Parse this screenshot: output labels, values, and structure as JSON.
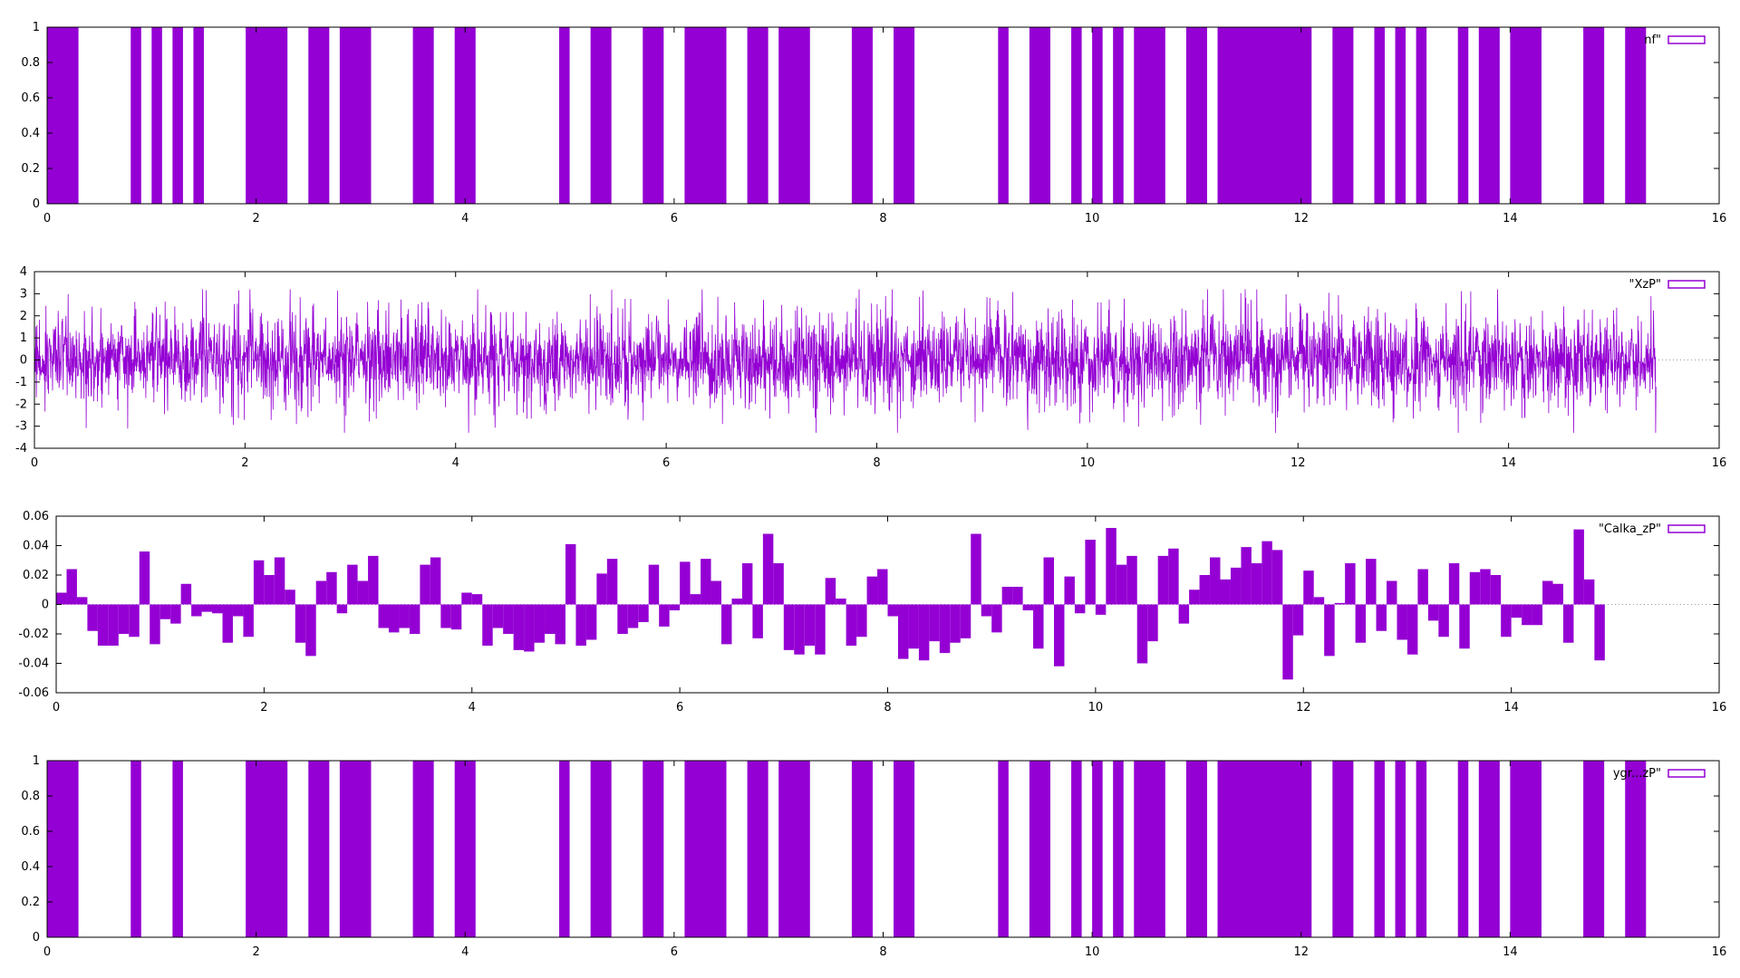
{
  "colors": {
    "series": "#9400d3",
    "axis": "#000000",
    "zero_line": "#999999",
    "background": "#ffffff"
  },
  "chart_data": [
    {
      "type": "bar",
      "legend": "nf\"",
      "legend_position": "top-right",
      "grid": false,
      "xlim": [
        0,
        16
      ],
      "ylim": [
        0,
        1
      ],
      "xticks": [
        0,
        2,
        4,
        6,
        8,
        10,
        12,
        14,
        16
      ],
      "yticks": [
        0,
        0.2,
        0.4,
        0.6,
        0.8,
        1
      ],
      "ytick_labels": [
        "0",
        "0.2",
        "0.4",
        "0.6",
        "0.8",
        "1"
      ],
      "intervals_value_1": [
        [
          0,
          0.3
        ],
        [
          0.8,
          0.9
        ],
        [
          1,
          1.1
        ],
        [
          1.2,
          1.3
        ],
        [
          1.4,
          1.5
        ],
        [
          1.9,
          2.3
        ],
        [
          2.5,
          2.7
        ],
        [
          2.8,
          3.1
        ],
        [
          3.5,
          3.7
        ],
        [
          3.9,
          4.1
        ],
        [
          4.9,
          5.0
        ],
        [
          5.2,
          5.4
        ],
        [
          5.7,
          5.9
        ],
        [
          6.1,
          6.5
        ],
        [
          6.7,
          6.9
        ],
        [
          7.0,
          7.3
        ],
        [
          7.7,
          7.9
        ],
        [
          8.1,
          8.3
        ],
        [
          9.1,
          9.2
        ],
        [
          9.4,
          9.6
        ],
        [
          9.8,
          9.9
        ],
        [
          10.0,
          10.1
        ],
        [
          10.2,
          10.3
        ],
        [
          10.4,
          10.7
        ],
        [
          10.9,
          11.1
        ],
        [
          11.2,
          12.1
        ],
        [
          12.3,
          12.5
        ],
        [
          12.7,
          12.8
        ],
        [
          12.9,
          13.0
        ],
        [
          13.1,
          13.2
        ],
        [
          13.5,
          13.6
        ],
        [
          13.7,
          13.9
        ],
        [
          14.0,
          14.3
        ],
        [
          14.7,
          14.9
        ],
        [
          15.1,
          15.3
        ]
      ]
    },
    {
      "type": "line",
      "legend": "\"XzP\"",
      "legend_position": "top-right",
      "grid": false,
      "xlim": [
        0,
        16
      ],
      "ylim": [
        -4,
        4
      ],
      "xticks": [
        0,
        2,
        4,
        6,
        8,
        10,
        12,
        14,
        16
      ],
      "yticks": [
        -4,
        -3,
        -2,
        -1,
        0,
        1,
        2,
        3,
        4
      ],
      "ytick_labels": [
        "-4",
        "-3",
        "-2",
        "-1",
        "0",
        "1",
        "2",
        "3",
        "4"
      ],
      "x_start": 0,
      "x_end": 15.4,
      "amplitude_range": [
        -3.3,
        3.2
      ],
      "note_series": "dense oscillating signal around 0"
    },
    {
      "type": "bar",
      "legend": "\"Calka_zP\"",
      "legend_position": "top-right",
      "grid": false,
      "xlim": [
        0,
        16
      ],
      "ylim": [
        -0.06,
        0.06
      ],
      "xticks": [
        0,
        2,
        4,
        6,
        8,
        10,
        12,
        14,
        16
      ],
      "yticks": [
        -0.06,
        -0.04,
        -0.02,
        0,
        0.02,
        0.04,
        0.06
      ],
      "ytick_labels": [
        "-0.06",
        "-0.04",
        "-0.02",
        "0",
        "0.02",
        "0.04",
        "0.06"
      ],
      "bin_width": 0.1,
      "x_start": 0,
      "values": [
        0.008,
        0.024,
        0.005,
        -0.018,
        -0.028,
        -0.028,
        -0.02,
        -0.022,
        0.036,
        -0.027,
        -0.01,
        -0.013,
        0.014,
        -0.008,
        -0.005,
        -0.006,
        -0.026,
        -0.008,
        -0.022,
        0.03,
        0.02,
        0.032,
        0.01,
        -0.026,
        -0.035,
        0.016,
        0.022,
        -0.006,
        0.027,
        0.016,
        0.033,
        -0.016,
        -0.019,
        -0.016,
        -0.02,
        0.027,
        0.032,
        -0.016,
        -0.017,
        0.008,
        0.007,
        -0.028,
        -0.016,
        -0.02,
        -0.031,
        -0.032,
        -0.026,
        -0.02,
        -0.027,
        0.041,
        -0.028,
        -0.024,
        0.021,
        0.031,
        -0.02,
        -0.016,
        -0.012,
        0.027,
        -0.015,
        -0.004,
        0.029,
        0.007,
        0.031,
        0.016,
        -0.027,
        0.004,
        0.028,
        -0.023,
        0.048,
        0.028,
        -0.031,
        -0.034,
        -0.028,
        -0.034,
        0.018,
        0.004,
        -0.028,
        -0.022,
        0.019,
        0.024,
        -0.008,
        -0.037,
        -0.03,
        -0.038,
        -0.025,
        -0.033,
        -0.026,
        -0.023,
        0.048,
        -0.008,
        -0.019,
        0.012,
        0.012,
        -0.004,
        -0.03,
        0.032,
        -0.042,
        0.019,
        -0.006,
        0.044,
        -0.007,
        0.052,
        0.027,
        0.033,
        -0.04,
        -0.025,
        0.033,
        0.038,
        -0.013,
        0.01,
        0.02,
        0.032,
        0.017,
        0.025,
        0.039,
        0.028,
        0.043,
        0.037,
        -0.051,
        -0.021,
        0.023,
        0.005,
        -0.035,
        0.001,
        0.028,
        -0.026,
        0.031,
        -0.018,
        0.016,
        -0.024,
        -0.034,
        0.024,
        -0.011,
        -0.022,
        0.028,
        -0.03,
        0.022,
        0.024,
        0.02,
        -0.022,
        -0.009,
        -0.014,
        -0.014,
        0.016,
        0.014,
        -0.026,
        0.051,
        0.017,
        -0.038
      ]
    },
    {
      "type": "bar",
      "legend": "ygr...zP\"",
      "legend_position": "top-right",
      "grid": false,
      "xlim": [
        0,
        16
      ],
      "ylim": [
        0,
        1
      ],
      "xticks": [
        0,
        2,
        4,
        6,
        8,
        10,
        12,
        14,
        16
      ],
      "yticks": [
        0,
        0.2,
        0.4,
        0.6,
        0.8,
        1
      ],
      "ytick_labels": [
        "0",
        "0.2",
        "0.4",
        "0.6",
        "0.8",
        "1"
      ],
      "intervals_value_1": [
        [
          0,
          0.3
        ],
        [
          0.8,
          0.9
        ],
        [
          1.2,
          1.3
        ],
        [
          1.9,
          2.3
        ],
        [
          2.5,
          2.7
        ],
        [
          2.8,
          3.1
        ],
        [
          3.5,
          3.7
        ],
        [
          3.9,
          4.1
        ],
        [
          4.9,
          5.0
        ],
        [
          5.2,
          5.4
        ],
        [
          5.7,
          5.9
        ],
        [
          6.1,
          6.5
        ],
        [
          6.7,
          6.9
        ],
        [
          7.0,
          7.3
        ],
        [
          7.7,
          7.9
        ],
        [
          8.1,
          8.3
        ],
        [
          9.1,
          9.2
        ],
        [
          9.4,
          9.6
        ],
        [
          9.8,
          9.9
        ],
        [
          10.0,
          10.1
        ],
        [
          10.2,
          10.3
        ],
        [
          10.4,
          10.7
        ],
        [
          10.9,
          11.1
        ],
        [
          11.2,
          12.1
        ],
        [
          12.3,
          12.5
        ],
        [
          12.7,
          12.8
        ],
        [
          12.9,
          13.0
        ],
        [
          13.1,
          13.2
        ],
        [
          13.5,
          13.6
        ],
        [
          13.7,
          13.9
        ],
        [
          14.0,
          14.3
        ],
        [
          14.7,
          14.9
        ],
        [
          15.1,
          15.3
        ]
      ]
    }
  ]
}
